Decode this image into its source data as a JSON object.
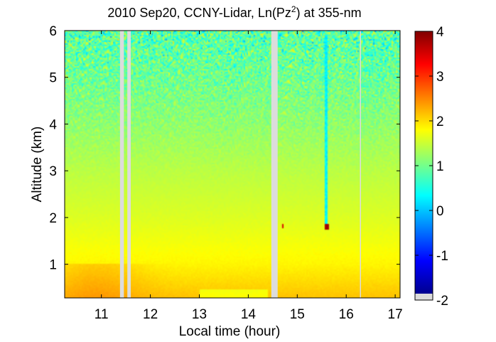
{
  "chart_data": {
    "type": "heatmap",
    "title": {
      "prefix": "2010 Sep20, CCNY-Lidar, Ln(Pz",
      "sup": "2",
      "suffix": ") at 355-nm"
    },
    "xlabel": "Local time (hour)",
    "ylabel": "Altitude (km)",
    "xlim": [
      10.25,
      17.1
    ],
    "ylim": [
      0.28,
      6.0
    ],
    "xticks": [
      11,
      12,
      13,
      14,
      15,
      16,
      17
    ],
    "yticks": [
      1,
      2,
      3,
      4,
      5,
      6
    ],
    "colorbar": {
      "range": [
        -2,
        4
      ],
      "ticks": [
        -2,
        -1,
        0,
        1,
        2,
        3,
        4
      ],
      "colormap": "jet"
    },
    "data_gaps": [
      [
        11.38,
        11.46
      ],
      [
        11.53,
        11.6
      ],
      [
        14.47,
        14.6
      ],
      [
        16.28,
        16.3
      ]
    ],
    "profile": {
      "description_altitude_km": [
        0.3,
        1.0,
        2.0,
        3.0,
        4.0,
        5.0,
        6.0
      ],
      "ln_pz2_typical": [
        2.1,
        1.8,
        1.55,
        1.35,
        1.1,
        0.9,
        0.75
      ]
    },
    "features": [
      {
        "label": "cloud",
        "time_range": [
          15.55,
          15.65
        ],
        "altitude_km": 1.8,
        "value": 3.8
      },
      {
        "label": "cloud",
        "time_range": [
          14.7,
          14.73
        ],
        "altitude_km": 1.82,
        "value": 3.5
      }
    ]
  }
}
